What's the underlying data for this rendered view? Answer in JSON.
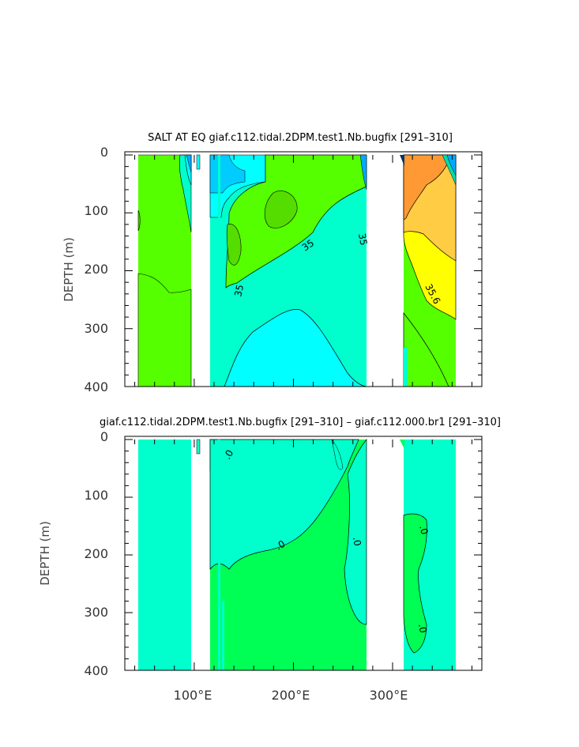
{
  "chart_data": [
    {
      "type": "heatmap",
      "title": "SALT AT EQ giaf.c112.tidal.2DPM.test1.Nb.bugfix [291–310]",
      "xlabel": "",
      "ylabel": "DEPTH (m)",
      "xlim": [
        30,
        390
      ],
      "ylim": [
        0,
        400
      ],
      "y_inverted": true,
      "y_ticks": [
        0,
        100,
        200,
        300,
        400
      ],
      "y_tick_labels": [
        "0",
        "100",
        "200",
        "300",
        "400"
      ],
      "x_ticks": [
        100,
        200,
        300
      ],
      "x_tick_labels": [
        "",
        "",
        ""
      ],
      "contour_labels": [
        {
          "text": "35",
          "x": 195,
          "y": 158
        },
        {
          "text": "35",
          "x": 266,
          "y": 148
        },
        {
          "text": "35",
          "x": 148,
          "y": 238
        },
        {
          "text": "35.6",
          "x": 344,
          "y": 248
        }
      ],
      "land_bands_lon": [
        [
          97,
          118
        ],
        [
          124,
          129
        ],
        [
          277,
          314
        ],
        [
          368,
          390
        ]
      ],
      "colors": {
        "blue": "#00aaff",
        "cyan": "#00ffff",
        "aqua": "#00ffcc",
        "green": "#55ff00",
        "teal": "#00e5b0",
        "orange": "#ff9933",
        "light_orange": "#ffcc44",
        "yellow": "#ffff00"
      }
    },
    {
      "type": "heatmap",
      "title": "giaf.c112.tidal.2DPM.test1.Nb.bugfix [291–310] – giaf.c112.000.br1 [291–310]",
      "xlabel": "",
      "ylabel": "DEPTH (m)",
      "xlim": [
        30,
        390
      ],
      "ylim": [
        0,
        400
      ],
      "y_inverted": true,
      "y_ticks": [
        0,
        100,
        200,
        300,
        400
      ],
      "y_tick_labels": [
        "0",
        "100",
        "200",
        "300",
        "400"
      ],
      "x_ticks": [
        100,
        200,
        300
      ],
      "x_tick_labels": [
        "100°E",
        "200°E",
        "300°E"
      ],
      "contour_labels": [
        {
          "text": ".0",
          "x": 145,
          "y": 38
        },
        {
          "text": ".0",
          "x": 190,
          "y": 192
        },
        {
          "text": ".0",
          "x": 262,
          "y": 182
        },
        {
          "text": ".0",
          "x": 340,
          "y": 165
        },
        {
          "text": ".0",
          "x": 335,
          "y": 330
        }
      ],
      "land_bands_lon": [
        [
          97,
          118
        ],
        [
          124,
          129
        ],
        [
          277,
          314
        ],
        [
          368,
          390
        ]
      ],
      "colors": {
        "aqua": "#00ffcc",
        "green": "#00ff55"
      }
    }
  ]
}
